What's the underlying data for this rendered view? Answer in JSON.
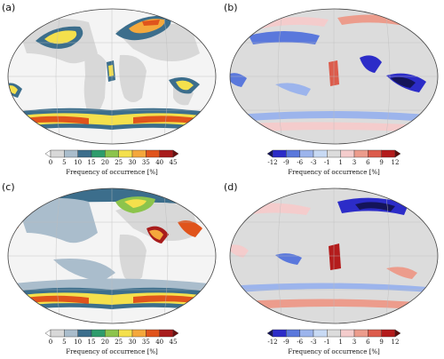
{
  "panels": [
    {
      "label": "(a)",
      "kind": "frequency"
    },
    {
      "label": "(b)",
      "kind": "difference"
    },
    {
      "label": "(c)",
      "kind": "frequency"
    },
    {
      "label": "(d)",
      "kind": "difference"
    }
  ],
  "colorbars": {
    "frequency": {
      "ticks": [
        "0",
        "5",
        "10",
        "15",
        "20",
        "25",
        "30",
        "35",
        "40",
        "45"
      ],
      "colors": [
        "#ffffff",
        "#d8d8d8",
        "#aabdcc",
        "#3c6e8c",
        "#2e9c6c",
        "#8cc44c",
        "#f4e04c",
        "#f4a83c",
        "#e0541c",
        "#a81c1c",
        "#681010"
      ],
      "title": "Frequency of occurrence [%]"
    },
    "difference": {
      "ticks": [
        "-12",
        "-9",
        "-6",
        "-3",
        "-1",
        "1",
        "3",
        "6",
        "9",
        "12"
      ],
      "colors": [
        "#14145a",
        "#2c2cc8",
        "#5a78dc",
        "#9cb4ec",
        "#c8daf4",
        "#dcdcdc",
        "#f4cccc",
        "#ec9c8c",
        "#dc5c4c",
        "#b41c1c",
        "#5a0c0c"
      ],
      "title": "Frequency of occurrence [%]"
    }
  },
  "colors": {
    "ocean_bg": "#ffffff",
    "land_gray": "#d8d8d8",
    "coast": "#555555"
  }
}
